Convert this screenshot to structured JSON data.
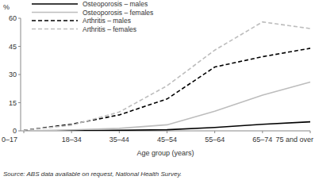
{
  "chart_data": {
    "type": "line",
    "y_label": "%",
    "x_label": "Age group (years)",
    "source": "Source: ABS data available on request, National Health Survey.",
    "categories": [
      "0–17",
      "18–34",
      "35–44",
      "45–54",
      "55–64",
      "65–74",
      "75 and over"
    ],
    "series": [
      {
        "name": "Osteoporosis – males",
        "color": "#000000",
        "line_style": "solid",
        "values": [
          0,
          0.1,
          0.3,
          0.6,
          1.8,
          3.5,
          4.8
        ]
      },
      {
        "name": "Osteoporosis – females",
        "color": "#bdbdbd",
        "line_style": "solid",
        "values": [
          0,
          0.5,
          1.3,
          3.2,
          10.5,
          19,
          26
        ]
      },
      {
        "name": "Arthritis – males",
        "color": "#000000",
        "line_style": "dashed",
        "values": [
          0.3,
          3.5,
          8.5,
          17,
          34,
          39.5,
          44
        ]
      },
      {
        "name": "Arthritis – females",
        "color": "#bdbdbd",
        "line_style": "dashed",
        "values": [
          0.3,
          3,
          10,
          24,
          43,
          58,
          54.5
        ]
      }
    ],
    "ylim": [
      0,
      60
    ],
    "yticks": [
      0,
      15,
      30,
      45,
      60
    ],
    "grid": false,
    "legend": "top-left"
  }
}
